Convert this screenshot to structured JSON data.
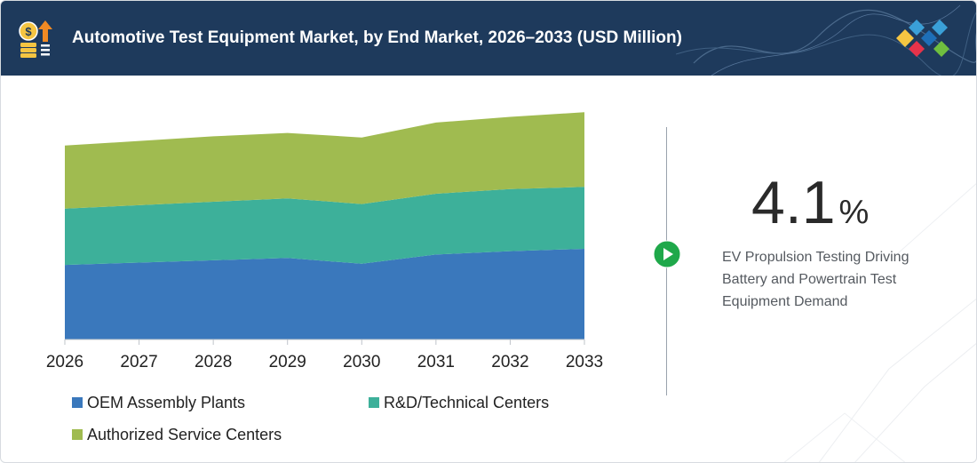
{
  "header": {
    "title": "Automotive Test Equipment Market, by End Market, 2026–2033 (USD Million)",
    "icon": "coin-growth-icon",
    "logo": "diamond-logo-icon"
  },
  "colors": {
    "header_bg": "#1e3a5c",
    "oem": "#3a78bc",
    "rd": "#3db09a",
    "service": "#a0bb50",
    "play": "#1fa84a"
  },
  "chart_data": {
    "type": "area",
    "stacked": true,
    "x": [
      "2026",
      "2027",
      "2028",
      "2029",
      "2030",
      "2031",
      "2032",
      "2033"
    ],
    "series": [
      {
        "name": "OEM Assembly Plants",
        "values": [
          65,
          67,
          69,
          71,
          66,
          74,
          77,
          79
        ]
      },
      {
        "name": "R&D/Technical Centers",
        "values": [
          49,
          50,
          51,
          52,
          52,
          53,
          54,
          54
        ]
      },
      {
        "name": "Authorized Service Centers",
        "values": [
          55,
          56,
          57,
          57,
          58,
          62,
          63,
          65
        ]
      }
    ],
    "ylim": [
      0,
      230
    ],
    "grid": false,
    "legend_position": "bottom-left",
    "title": "",
    "xlabel": "",
    "ylabel": ""
  },
  "kpi": {
    "value": "4.1",
    "unit": "%",
    "description": "EV Propulsion Testing Driving Battery and Powertrain Test Equipment Demand"
  },
  "play_icon": "play-icon"
}
